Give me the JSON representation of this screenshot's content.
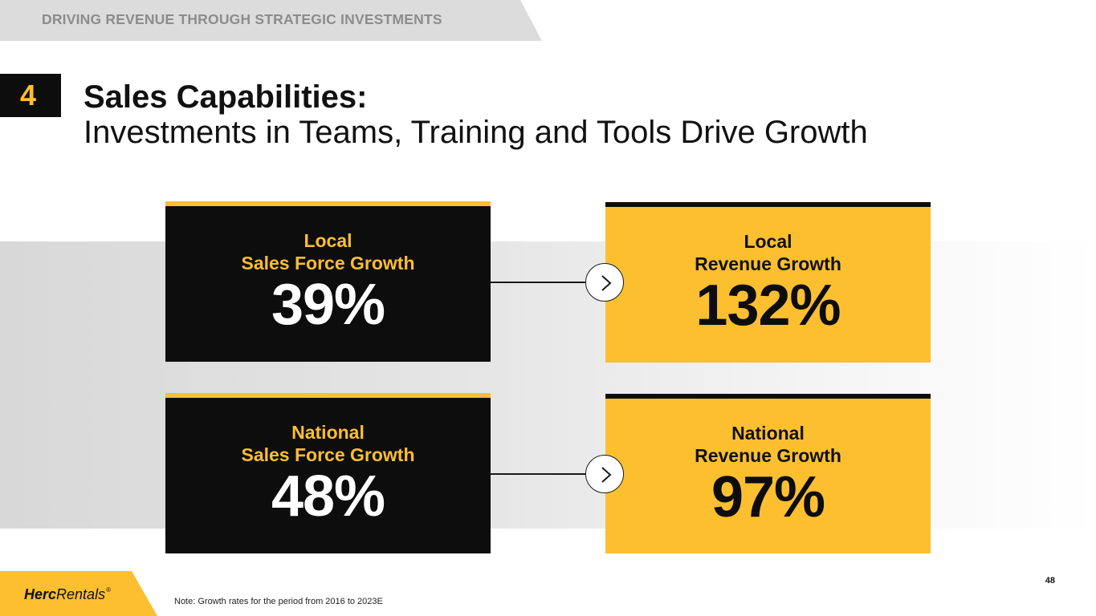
{
  "header": {
    "banner_text": "DRIVING REVENUE THROUGH STRATEGIC INVESTMENTS",
    "section_number": "4",
    "title_line1": "Sales Capabilities:",
    "title_line2": "Investments in Teams, Training and Tools Drive Growth"
  },
  "cards": {
    "local_sales": {
      "label_line1": "Local",
      "label_line2": "Sales Force Growth",
      "value": "39%"
    },
    "local_revenue": {
      "label_line1": "Local",
      "label_line2": "Revenue Growth",
      "value": "132%"
    },
    "national_sales": {
      "label_line1": "National",
      "label_line2": "Sales Force Growth",
      "value": "48%"
    },
    "national_revenue": {
      "label_line1": "National",
      "label_line2": "Revenue Growth",
      "value": "97%"
    }
  },
  "footer": {
    "logo_herc": "Herc",
    "logo_rentals": "Rentals",
    "logo_reg": "®",
    "note": "Note: Growth rates for the period from 2016 to 2023E",
    "page_number": "48"
  },
  "colors": {
    "gold": "#fcbf30",
    "black": "#0d0d0d",
    "banner_gray": "#dcdcdc"
  },
  "icons": [
    "chevron-right-icon",
    "chevron-right-icon"
  ]
}
